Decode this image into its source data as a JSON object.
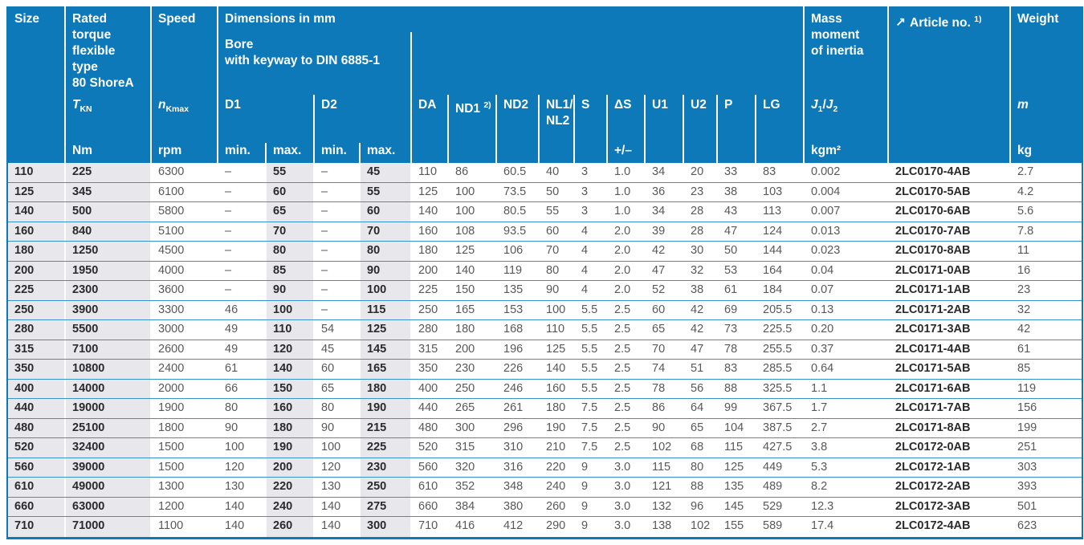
{
  "colors": {
    "header_bg": "#0e79b8",
    "row_separator": "#3a92cc",
    "shaded_column_bg": "#e7e7ec",
    "body_text": "#58585a",
    "bold_text": "#2b2b2d",
    "header_text": "#ffffff"
  },
  "header": {
    "size": "Size",
    "torque": "Rated\ntorque\nflexible\ntype\n80 ShoreA",
    "speed": "Speed",
    "dims_title": "Dimensions in mm",
    "dims_sub": "Bore\nwith keyway to DIN 6885-1",
    "mass": "Mass\nmoment\nof inertia",
    "article_icon": "↗",
    "article": "Article no.",
    "article_sup": "1)",
    "weight": "Weight",
    "sym": {
      "t": "T",
      "t_sub": "KN",
      "n": "n",
      "n_sub": "Kmax",
      "d1": "D1",
      "d2": "D2",
      "da": "DA",
      "nd1": "ND1",
      "nd1_sup": "2)",
      "nd2": "ND2",
      "nl": "NL1/\nNL2",
      "s": "S",
      "ds": "ΔS",
      "u1": "U1",
      "u2": "U2",
      "p": "P",
      "lg": "LG",
      "j_a": "J",
      "j_a_sub": "1",
      "j_sep": "/",
      "j_b": "J",
      "j_b_sub": "2",
      "m": "m"
    },
    "units": {
      "nm": "Nm",
      "rpm": "rpm",
      "d1_min": "min.",
      "d1_max": "max.",
      "d2_min": "min.",
      "d2_max": "max.",
      "ds_tol": "+/–",
      "kgm2": "kgm²",
      "kg": "kg"
    }
  },
  "table": {
    "columns": [
      "size",
      "rated_torque_Nm",
      "speed_rpm",
      "d1_min",
      "d1_max",
      "d2_min",
      "d2_max",
      "DA",
      "ND1",
      "ND2",
      "NL1_NL2",
      "S",
      "dS",
      "U1",
      "U2",
      "P",
      "LG",
      "J1_J2_kgm2",
      "article_no",
      "weight_kg"
    ],
    "rows": [
      [
        "110",
        "225",
        "6300",
        "–",
        "55",
        "–",
        "45",
        "110",
        "86",
        "60.5",
        "40",
        "3",
        "1.0",
        "34",
        "20",
        "33",
        "83",
        "0.002",
        "2LC0170-4AB",
        "2.7"
      ],
      [
        "125",
        "345",
        "6100",
        "–",
        "60",
        "–",
        "55",
        "125",
        "100",
        "73.5",
        "50",
        "3",
        "1.0",
        "36",
        "23",
        "38",
        "103",
        "0.004",
        "2LC0170-5AB",
        "4.2"
      ],
      [
        "140",
        "500",
        "5800",
        "–",
        "65",
        "–",
        "60",
        "140",
        "100",
        "80.5",
        "55",
        "3",
        "1.0",
        "34",
        "28",
        "43",
        "113",
        "0.007",
        "2LC0170-6AB",
        "5.6"
      ],
      [
        "160",
        "840",
        "5100",
        "–",
        "70",
        "–",
        "70",
        "160",
        "108",
        "93.5",
        "60",
        "4",
        "2.0",
        "39",
        "28",
        "47",
        "124",
        "0.013",
        "2LC0170-7AB",
        "7.8"
      ],
      [
        "180",
        "1250",
        "4500",
        "–",
        "80",
        "–",
        "80",
        "180",
        "125",
        "106",
        "70",
        "4",
        "2.0",
        "42",
        "30",
        "50",
        "144",
        "0.023",
        "2LC0170-8AB",
        "11"
      ],
      [
        "200",
        "1950",
        "4000",
        "–",
        "85",
        "–",
        "90",
        "200",
        "140",
        "119",
        "80",
        "4",
        "2.0",
        "47",
        "32",
        "53",
        "164",
        "0.04",
        "2LC0171-0AB",
        "16"
      ],
      [
        "225",
        "2300",
        "3600",
        "–",
        "90",
        "–",
        "100",
        "225",
        "150",
        "135",
        "90",
        "4",
        "2.0",
        "52",
        "38",
        "61",
        "184",
        "0.07",
        "2LC0171-1AB",
        "23"
      ],
      [
        "250",
        "3900",
        "3300",
        "46",
        "100",
        "–",
        "115",
        "250",
        "165",
        "153",
        "100",
        "5.5",
        "2.5",
        "60",
        "42",
        "69",
        "205.5",
        "0.13",
        "2LC0171-2AB",
        "32"
      ],
      [
        "280",
        "5500",
        "3000",
        "49",
        "110",
        "54",
        "125",
        "280",
        "180",
        "168",
        "110",
        "5.5",
        "2.5",
        "65",
        "42",
        "73",
        "225.5",
        "0.20",
        "2LC0171-3AB",
        "42"
      ],
      [
        "315",
        "7100",
        "2600",
        "49",
        "120",
        "45",
        "145",
        "315",
        "200",
        "196",
        "125",
        "5.5",
        "2.5",
        "70",
        "47",
        "78",
        "255.5",
        "0.37",
        "2LC0171-4AB",
        "61"
      ],
      [
        "350",
        "10800",
        "2400",
        "61",
        "140",
        "60",
        "165",
        "350",
        "230",
        "226",
        "140",
        "5.5",
        "2.5",
        "74",
        "51",
        "83",
        "285.5",
        "0.64",
        "2LC0171-5AB",
        "85"
      ],
      [
        "400",
        "14000",
        "2000",
        "66",
        "150",
        "65",
        "180",
        "400",
        "250",
        "246",
        "160",
        "5.5",
        "2.5",
        "78",
        "56",
        "88",
        "325.5",
        "1.1",
        "2LC0171-6AB",
        "119"
      ],
      [
        "440",
        "19000",
        "1900",
        "80",
        "160",
        "80",
        "190",
        "440",
        "265",
        "261",
        "180",
        "7.5",
        "2.5",
        "86",
        "64",
        "99",
        "367.5",
        "1.7",
        "2LC0171-7AB",
        "156"
      ],
      [
        "480",
        "25100",
        "1800",
        "90",
        "180",
        "90",
        "215",
        "480",
        "300",
        "296",
        "190",
        "7.5",
        "2.5",
        "90",
        "65",
        "104",
        "387.5",
        "2.7",
        "2LC0171-8AB",
        "199"
      ],
      [
        "520",
        "32400",
        "1500",
        "100",
        "190",
        "100",
        "225",
        "520",
        "315",
        "310",
        "210",
        "7.5",
        "2.5",
        "102",
        "68",
        "115",
        "427.5",
        "3.8",
        "2LC0172-0AB",
        "251"
      ],
      [
        "560",
        "39000",
        "1500",
        "120",
        "200",
        "120",
        "230",
        "560",
        "320",
        "316",
        "220",
        "9",
        "3.0",
        "115",
        "80",
        "125",
        "449",
        "5.3",
        "2LC0172-1AB",
        "303"
      ],
      [
        "610",
        "49000",
        "1300",
        "130",
        "220",
        "130",
        "250",
        "610",
        "352",
        "348",
        "240",
        "9",
        "3.0",
        "121",
        "88",
        "135",
        "489",
        "8.2",
        "2LC0172-2AB",
        "393"
      ],
      [
        "660",
        "63000",
        "1200",
        "140",
        "240",
        "140",
        "275",
        "660",
        "384",
        "380",
        "260",
        "9",
        "3.0",
        "132",
        "96",
        "145",
        "529",
        "12.3",
        "2LC0172-3AB",
        "501"
      ],
      [
        "710",
        "71000",
        "1100",
        "140",
        "260",
        "140",
        "300",
        "710",
        "416",
        "412",
        "290",
        "9",
        "3.0",
        "138",
        "102",
        "155",
        "589",
        "17.4",
        "2LC0172-4AB",
        "623"
      ]
    ]
  }
}
